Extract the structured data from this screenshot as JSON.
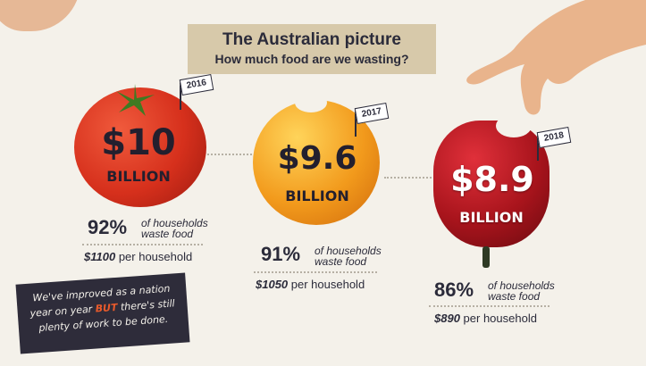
{
  "header": {
    "title": "The Australian picture",
    "subtitle": "How much food are we wasting?"
  },
  "years": [
    {
      "year": "2016",
      "amount": "$10",
      "unit": "BILLION",
      "percent": "92%",
      "percent_label_1": "of households",
      "percent_label_2": "waste food",
      "per_household_amount": "$1100",
      "per_household_label": "per household",
      "fruit": "tomato"
    },
    {
      "year": "2017",
      "amount": "$9.6",
      "unit": "BILLION",
      "percent": "91%",
      "percent_label_1": "of households",
      "percent_label_2": "waste food",
      "per_household_amount": "$1050",
      "per_household_label": "per household",
      "fruit": "orange"
    },
    {
      "year": "2018",
      "amount": "$8.9",
      "unit": "BILLION",
      "percent": "86%",
      "percent_label_1": "of households",
      "percent_label_2": "waste food",
      "per_household_amount": "$890",
      "per_household_label": "per household",
      "fruit": "red-capsicum"
    }
  ],
  "note": {
    "line1": "We've improved as a nation",
    "line2_pre": "year on year",
    "line2_highlight": "BUT",
    "line2_post": "there's still",
    "line3": "plenty of work to be done."
  },
  "colors": {
    "background": "#f4f1ea",
    "title_box": "#d7c9aa",
    "dark": "#2b2b3a",
    "highlight": "#e85a2b",
    "tomato": "#d6301c",
    "orange": "#f29a1c",
    "capsicum": "#a8141c"
  }
}
